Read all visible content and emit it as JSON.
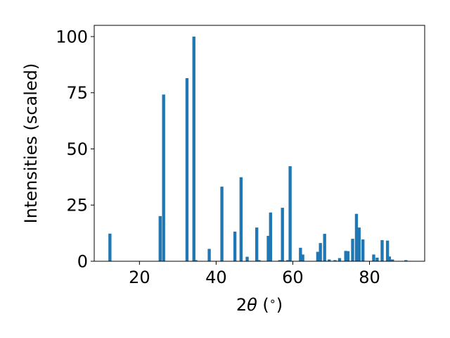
{
  "chart_data": {
    "type": "bar",
    "xlabel": "2θ (°)",
    "xlabel_parts": {
      "prefix": "2",
      "symbol": "θ",
      "open": " (",
      "degree": "∘",
      "close": ")"
    },
    "ylabel": "Intensities (scaled)",
    "xlim": [
      8.2,
      94.4
    ],
    "ylim": [
      0,
      105
    ],
    "x_ticks": [
      20,
      40,
      60,
      80
    ],
    "y_ticks": [
      0,
      25,
      50,
      75,
      100
    ],
    "grid": false,
    "bar_color": "#1f77b4",
    "bar_width": 0.8,
    "x": [
      12.3,
      25.4,
      26.3,
      32.4,
      34.2,
      34.7,
      38.2,
      41.5,
      44.9,
      46.5,
      48.1,
      50.6,
      51.2,
      53.6,
      54.2,
      56.6,
      57.3,
      58.7,
      59.3,
      62.0,
      62.6,
      66.5,
      67.2,
      68.3,
      69.5,
      71.0,
      72.2,
      73.8,
      74.4,
      75.6,
      76.6,
      77.3,
      78.3,
      81.1,
      82.0,
      83.3,
      84.7,
      85.2,
      86.0,
      89.5
    ],
    "values": [
      12.3,
      20.1,
      74.2,
      81.5,
      100.0,
      0.5,
      5.5,
      33.2,
      13.2,
      37.4,
      2.0,
      15.0,
      0.5,
      11.3,
      21.7,
      0.5,
      23.8,
      0.5,
      42.3,
      6.0,
      3.0,
      4.2,
      8.1,
      12.2,
      0.8,
      0.5,
      1.4,
      4.6,
      4.5,
      10.0,
      21.1,
      15.0,
      9.7,
      3.0,
      1.6,
      9.4,
      9.2,
      2.1,
      0.8,
      0.5
    ]
  }
}
